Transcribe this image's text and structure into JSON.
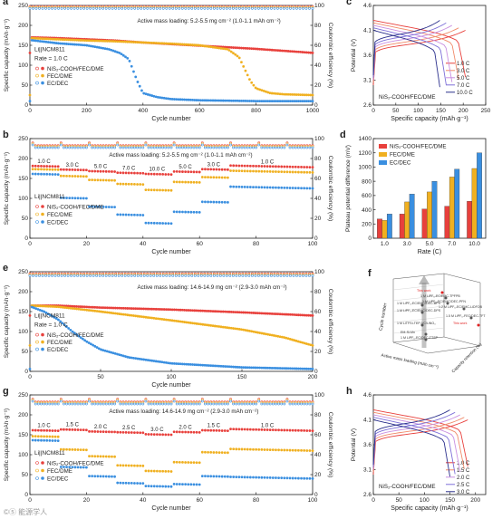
{
  "panels": {
    "a": {
      "letter": "a",
      "note": "Active mass loading: 5.2-5.5 mg cm⁻² (1.0-1.1 mAh cm⁻²)",
      "cell": "Li||NCM811",
      "rate": "Rate = 1.0 C"
    },
    "b": {
      "letter": "b",
      "note": "Active mass loading: 5.2-5.5 mg cm⁻² (1.0-1.1 mAh cm⁻²)",
      "cell": "Li||NCM811"
    },
    "c": {
      "letter": "c",
      "inlabel": "NiS₂-COOH/FEC/DME"
    },
    "d": {
      "letter": "d"
    },
    "e": {
      "letter": "e",
      "note": "Active mass loading: 14.6-14.9 mg cm⁻² (2.9-3.0 mAh cm⁻²)",
      "cell": "Li||NCM811",
      "rate": "Rate = 1.0 C"
    },
    "f": {
      "letter": "f"
    },
    "g": {
      "letter": "g",
      "note": "Active mass loading: 14.6-14.9 mg cm⁻² (2.9-3.0 mAh cm⁻²)",
      "cell": "Li||NCM811"
    },
    "h": {
      "letter": "h",
      "inlabel": "NiS₂-COOH/FEC/DME"
    }
  },
  "axes": {
    "capacity": "Specific capacity (mAh·g⁻¹)",
    "ce": "Coulombic efficiency (%)",
    "cycle": "Cycle number",
    "potential": "Potential (V)",
    "spcap": "Specific capacity (mAh·g⁻¹)",
    "plateau": "Plateau potential difference (mV)",
    "rate": "Rate (C)"
  },
  "legend": {
    "series": [
      "NiS₂-COOH/FEC/DME",
      "FEC/DME",
      "EC/DEC"
    ]
  },
  "colors": {
    "nis2": "#e8403c",
    "fec": "#f0b020",
    "ec": "#3a8fe0",
    "c_curves": [
      "#e8403c",
      "#f08a6a",
      "#c98fe0",
      "#7d6fd8",
      "#2a2f8c"
    ],
    "h_curves": [
      "#e8403c",
      "#f08a6a",
      "#c98fe0",
      "#7d6fd8",
      "#2a2f8c"
    ]
  },
  "rate_labels_b": [
    "1.0 C",
    "3.0 C",
    "5.0 C",
    "7.0 C",
    "10.0 C",
    "5.0 C",
    "3.0 C",
    "1.0 C"
  ],
  "rate_labels_g": [
    "1.0 C",
    "1.5 C",
    "2.0 C",
    "2.5 C",
    "3.0 C",
    "2.0 C",
    "1.5 C",
    "1.0 C"
  ],
  "f_labels": [
    "1 M LiPF₆-EC/EMC/DEC-BPS",
    "1 M LiPF₆-EC/EMC/DEC-DPS",
    "1 M LiTFSI-TEP-VC/LiNO₃",
    "EM-Si-Mn",
    "1 M LiPF₆-EC/DEC-TTSP",
    "This work",
    "This work",
    "1 M LiPF₆-EC/EMC-TPFPB",
    "1 M LiPF₆-EC/EMC/DEC-PFN",
    "1.2 M LiPF₆-EC/EMC-LiDFOB",
    "1.5 M LiPF₆-FEC/DEC-TFT"
  ],
  "f_axes": [
    "Cycle number",
    "Active mass loading (mAh cm⁻²)",
    "Capacity retention (%)"
  ],
  "watermark": "©⑤ 能源学人",
  "chart_data": [
    {
      "panel": "a",
      "type": "scatter",
      "xlim": [
        0,
        1000
      ],
      "ylim": [
        0,
        250
      ],
      "y2lim": [
        0,
        100
      ],
      "series": [
        {
          "name": "NiS₂-COOH/FEC/DME",
          "x": [
            1,
            100,
            200,
            300,
            400,
            500,
            600,
            700,
            800,
            900,
            1000
          ],
          "y": [
            170,
            168,
            165,
            162,
            157,
            153,
            149,
            145,
            141,
            136,
            131
          ]
        },
        {
          "name": "FEC/DME",
          "x": [
            1,
            100,
            200,
            300,
            400,
            500,
            600,
            700,
            740,
            780,
            800,
            850,
            900,
            1000
          ],
          "y": [
            168,
            165,
            162,
            160,
            157,
            154,
            150,
            140,
            120,
            60,
            42,
            30,
            27,
            25
          ]
        },
        {
          "name": "EC/DEC",
          "x": [
            1,
            100,
            200,
            280,
            320,
            350,
            380,
            400,
            450,
            500,
            600,
            800,
            1000
          ],
          "y": [
            163,
            155,
            150,
            140,
            130,
            115,
            60,
            30,
            20,
            15,
            12,
            10,
            10
          ]
        }
      ],
      "ce": 98
    },
    {
      "panel": "b",
      "type": "scatter",
      "xlim": [
        0,
        100
      ],
      "ylim": [
        0,
        250
      ],
      "series": [
        {
          "name": "NiS₂-COOH/FEC/DME",
          "steps": [
            [
              0,
              10,
              180
            ],
            [
              10,
              20,
              171
            ],
            [
              20,
              30,
              167
            ],
            [
              30,
              40,
              163
            ],
            [
              40,
              50,
              160
            ],
            [
              50,
              60,
              166
            ],
            [
              60,
              70,
              172
            ],
            [
              70,
              100,
              178
            ]
          ]
        },
        {
          "name": "FEC/DME",
          "steps": [
            [
              0,
              10,
              172
            ],
            [
              10,
              20,
              155
            ],
            [
              20,
              30,
              145
            ],
            [
              30,
              40,
              135
            ],
            [
              40,
              50,
              120
            ],
            [
              50,
              60,
              140
            ],
            [
              60,
              70,
              152
            ],
            [
              70,
              100,
              165
            ]
          ]
        },
        {
          "name": "EC/DEC",
          "steps": [
            [
              0,
              10,
              160
            ],
            [
              10,
              20,
              100
            ],
            [
              20,
              30,
              78
            ],
            [
              30,
              40,
              58
            ],
            [
              40,
              50,
              37
            ],
            [
              50,
              60,
              65
            ],
            [
              60,
              70,
              90
            ],
            [
              70,
              100,
              125
            ]
          ]
        }
      ]
    },
    {
      "panel": "c",
      "type": "line",
      "xlim": [
        0,
        250
      ],
      "ylim": [
        2.6,
        4.6
      ],
      "series": [
        {
          "name": "1.0 C",
          "capacity": 205
        },
        {
          "name": "3.0 C",
          "capacity": 190
        },
        {
          "name": "5.0 C",
          "capacity": 175
        },
        {
          "name": "7.0 C",
          "capacity": 162
        },
        {
          "name": "10.0 C",
          "capacity": 148
        }
      ]
    },
    {
      "panel": "d",
      "type": "bar",
      "categories": [
        "1.0",
        "3.0",
        "5.0",
        "7.0",
        "10.0"
      ],
      "ylim": [
        0,
        1400
      ],
      "series": [
        {
          "name": "NiS₂-COOH/FEC/DME",
          "values": [
            270,
            340,
            410,
            450,
            520
          ]
        },
        {
          "name": "FEC/DME",
          "values": [
            250,
            510,
            650,
            860,
            980
          ]
        },
        {
          "name": "EC/DEC",
          "values": [
            340,
            620,
            800,
            970,
            1200
          ]
        }
      ]
    },
    {
      "panel": "e",
      "type": "scatter",
      "xlim": [
        0,
        200
      ],
      "ylim": [
        0,
        250
      ],
      "y2lim": [
        0,
        100
      ],
      "series": [
        {
          "name": "NiS₂-COOH/FEC/DME",
          "x": [
            1,
            20,
            50,
            100,
            150,
            200
          ],
          "y": [
            165,
            165,
            160,
            155,
            148,
            140
          ]
        },
        {
          "name": "FEC/DME",
          "x": [
            1,
            20,
            50,
            100,
            150,
            180,
            200
          ],
          "y": [
            165,
            162,
            150,
            128,
            105,
            85,
            65
          ]
        },
        {
          "name": "EC/DEC",
          "x": [
            1,
            10,
            20,
            30,
            40,
            50,
            70,
            100,
            150,
            200
          ],
          "y": [
            162,
            150,
            130,
            100,
            75,
            55,
            35,
            20,
            10,
            6
          ]
        }
      ],
      "ce": 97
    },
    {
      "panel": "g",
      "type": "scatter",
      "xlim": [
        0,
        100
      ],
      "ylim": [
        0,
        250
      ],
      "series": [
        {
          "name": "NiS₂-COOH/FEC/DME",
          "steps": [
            [
              0,
              10,
              160
            ],
            [
              10,
              20,
              162
            ],
            [
              20,
              30,
              157
            ],
            [
              30,
              40,
              155
            ],
            [
              40,
              50,
              150
            ],
            [
              50,
              60,
              156
            ],
            [
              60,
              70,
              160
            ],
            [
              70,
              100,
              160
            ]
          ]
        },
        {
          "name": "FEC/DME",
          "steps": [
            [
              0,
              10,
              145
            ],
            [
              10,
              20,
              112
            ],
            [
              20,
              30,
              95
            ],
            [
              30,
              40,
              72
            ],
            [
              40,
              50,
              58
            ],
            [
              50,
              60,
              80
            ],
            [
              60,
              70,
              105
            ],
            [
              70,
              100,
              110
            ]
          ]
        },
        {
          "name": "EC/DEC",
          "steps": [
            [
              0,
              10,
              135
            ],
            [
              10,
              20,
              68
            ],
            [
              20,
              30,
              45
            ],
            [
              30,
              40,
              28
            ],
            [
              40,
              50,
              20
            ],
            [
              50,
              60,
              25
            ],
            [
              60,
              70,
              45
            ],
            [
              70,
              100,
              40
            ]
          ]
        }
      ]
    },
    {
      "panel": "h",
      "type": "line",
      "xlim": [
        0,
        220
      ],
      "ylim": [
        2.6,
        4.6
      ],
      "series": [
        {
          "name": "1.0 C",
          "capacity": 185
        },
        {
          "name": "1.5 C",
          "capacity": 178
        },
        {
          "name": "2.0 C",
          "capacity": 170
        },
        {
          "name": "2.5 C",
          "capacity": 160
        },
        {
          "name": "3.0 C",
          "capacity": 150
        }
      ]
    }
  ]
}
